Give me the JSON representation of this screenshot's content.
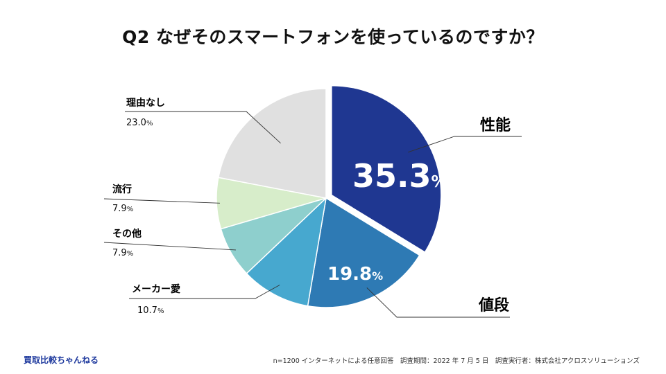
{
  "title": "Q2 なぜそのスマートフォンを使っているのですか？",
  "chart_data": {
    "type": "pie",
    "title": "Q2 なぜそのスマートフォンを使っているのですか？",
    "unit": "%",
    "slices": [
      {
        "label": "性能",
        "value": 35.3,
        "value_text": "35.3",
        "color": "#1f3791",
        "exploded": true
      },
      {
        "label": "値段",
        "value": 19.8,
        "value_text": "19.8",
        "color": "#2e7ab4"
      },
      {
        "label": "メーカー愛",
        "value": 10.7,
        "value_text": "10.7",
        "color": "#47a8cf"
      },
      {
        "label": "その他",
        "value": 7.9,
        "value_text": "7.9",
        "color": "#8ecfcd"
      },
      {
        "label": "流行",
        "value": 7.9,
        "value_text": "7.9",
        "color": "#d7edca"
      },
      {
        "label": "理由なし",
        "value": 23.0,
        "value_text": "23.0",
        "color": "#e0e0e0"
      }
    ]
  },
  "brand": "買取比較ちゃんねる",
  "footer": "n=1200 インターネットによる任意回答　調査期間：2022 年 7 月 5 日　調査実行者：株式会社アクロスソリューションズ"
}
